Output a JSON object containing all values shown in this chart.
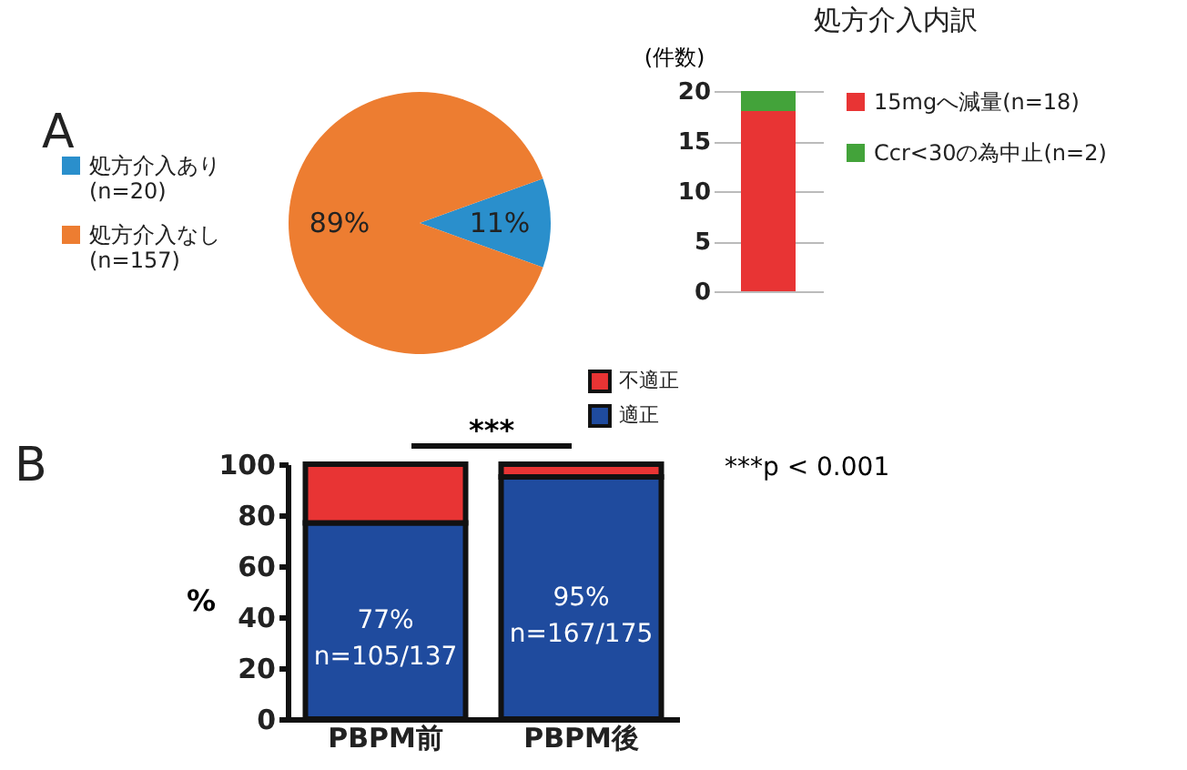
{
  "chart_data": [
    {
      "type": "pie",
      "title": "A",
      "categories": [
        "処方介入あり (n=20)",
        "処方介入なし (n=157)"
      ],
      "values": [
        11,
        89
      ],
      "colors": [
        "#2a8fcc",
        "#ed7d31"
      ],
      "value_labels": [
        "11%",
        "89%"
      ],
      "legend": "left"
    },
    {
      "type": "bar",
      "title": "処方介入内訳",
      "ylabel": "(件数)",
      "categories": [
        null
      ],
      "stacked": true,
      "series": [
        {
          "name": "15mgへ減量(n=18)",
          "color": "#e83434",
          "values": [
            18
          ]
        },
        {
          "name": "Ccr<30の為中止(n=2)",
          "color": "#43a33a",
          "values": [
            2
          ]
        }
      ],
      "ylim": [
        0,
        20
      ],
      "yticks": [
        0,
        5,
        10,
        15,
        20
      ],
      "grid": "y",
      "legend": "right"
    },
    {
      "type": "bar",
      "title": "B",
      "ylabel": "%",
      "categories": [
        "PBPM前",
        "PBPM後"
      ],
      "stacked": true,
      "series": [
        {
          "name": "適正",
          "color": "#1f4b9e",
          "values": [
            77,
            95
          ],
          "value_labels": [
            "77%\nn=105/137",
            "95%\nn=167/175"
          ]
        },
        {
          "name": "不適正",
          "color": "#e83434",
          "values": [
            23,
            5
          ]
        }
      ],
      "ylim": [
        0,
        100
      ],
      "yticks": [
        0,
        20,
        40,
        60,
        80,
        100
      ],
      "legend": "top",
      "annotations": [
        "***",
        "***p < 0.001"
      ]
    }
  ]
}
